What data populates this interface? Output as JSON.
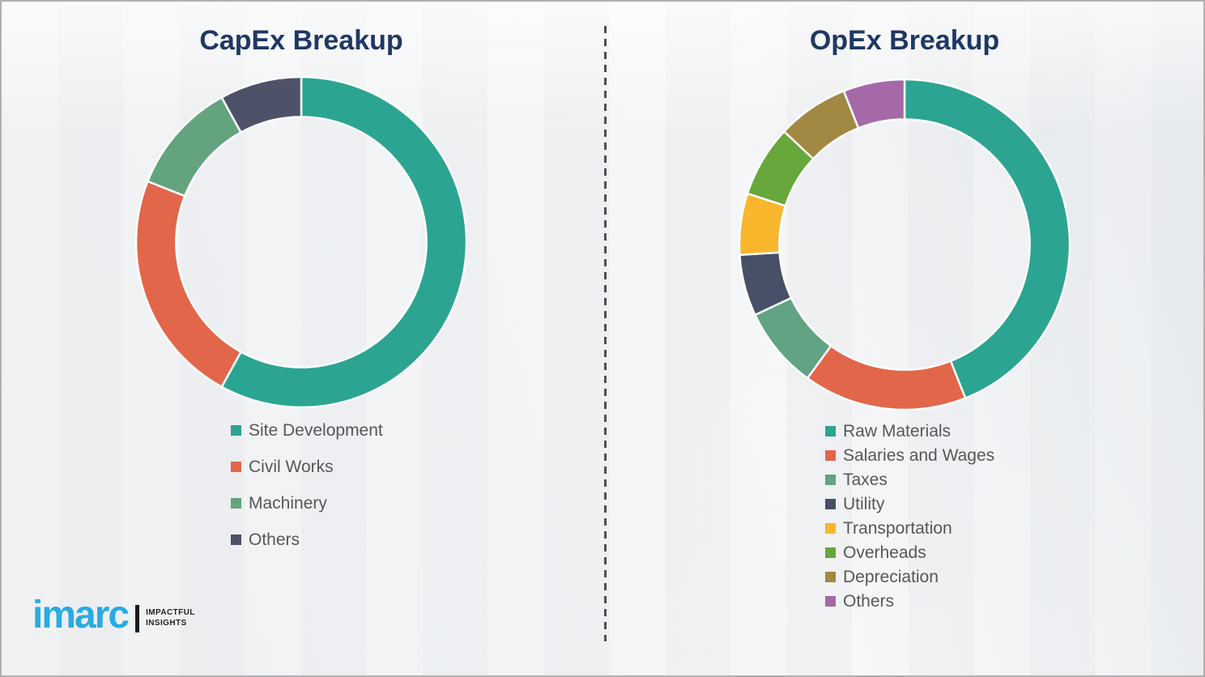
{
  "chart_data": [
    {
      "type": "pie",
      "subtype": "donut",
      "title": "CapEx Breakup",
      "labels": [
        "Site Development",
        "Civil Works",
        "Machinery",
        "Others"
      ],
      "values": [
        58,
        23,
        11,
        8
      ],
      "colors": [
        "#2CA492",
        "#E2664A",
        "#63A47F",
        "#4D5269"
      ],
      "values_unit": "% share, estimated from arc angles (no numeric labels shown)",
      "start_angle_deg": 0,
      "direction": "clockwise",
      "inner_radius_ratio": 0.758,
      "segment_gap": "thin white separators",
      "legend_position": "below chart, left-aligned",
      "legend_marker": "square"
    },
    {
      "type": "pie",
      "subtype": "donut",
      "title": "OpEx Breakup",
      "labels": [
        "Raw Materials",
        "Salaries and Wages",
        "Taxes",
        "Utility",
        "Transportation",
        "Overheads",
        "Depreciation",
        "Others"
      ],
      "values": [
        44,
        16,
        8,
        6,
        6,
        7,
        7,
        6
      ],
      "colors": [
        "#2CA492",
        "#E2664A",
        "#61A383",
        "#475066",
        "#F7B62B",
        "#67A73B",
        "#A18843",
        "#A569A8"
      ],
      "values_unit": "% share, estimated from arc angles (no numeric labels shown)",
      "start_angle_deg": 0,
      "direction": "clockwise",
      "inner_radius_ratio": 0.758,
      "segment_gap": "thin white separators",
      "legend_position": "below chart, left-aligned",
      "legend_marker": "square"
    }
  ],
  "logo": {
    "wordmark": "imarc",
    "tagline": [
      "IMPACTFUL",
      "INSIGHTS"
    ],
    "wordmark_color": "#29ABE2"
  },
  "theme": {
    "title_color": "#1F3864",
    "legend_text_color": "#575757",
    "divider_color": "#4B4F54",
    "background_color": "#F1F2F4",
    "border_color": "#AEB0B2",
    "segment_gap_color": "#FFFFFF"
  }
}
